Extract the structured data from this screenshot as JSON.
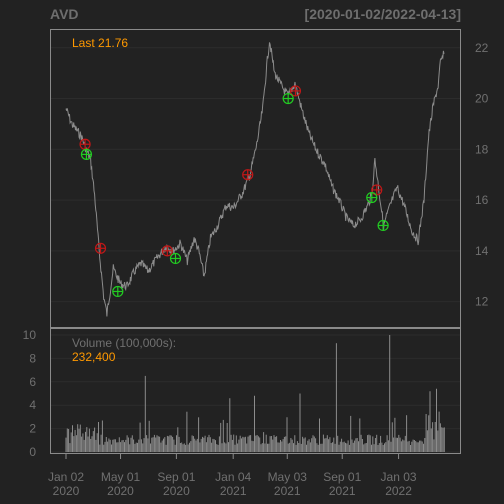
{
  "chart_data": {
    "type": "line",
    "title": "AVD",
    "date_range": "[2020-01-02/2022-04-13]",
    "price_panel": {
      "last_label": "Last 21.76",
      "yticks": [
        12,
        14,
        16,
        18,
        20,
        22
      ],
      "ylim": [
        11,
        22.7
      ],
      "series": [
        {
          "x": "2020-01-02",
          "y": 19.6
        },
        {
          "x": "2020-01-15",
          "y": 19.0
        },
        {
          "x": "2020-02-05",
          "y": 18.5
        },
        {
          "x": "2020-02-15",
          "y": 18.0
        },
        {
          "x": "2020-02-25",
          "y": 17.6
        },
        {
          "x": "2020-03-05",
          "y": 16.2
        },
        {
          "x": "2020-03-15",
          "y": 14.0
        },
        {
          "x": "2020-03-25",
          "y": 12.2
        },
        {
          "x": "2020-04-01",
          "y": 11.5
        },
        {
          "x": "2020-04-15",
          "y": 13.3
        },
        {
          "x": "2020-05-01",
          "y": 12.7
        },
        {
          "x": "2020-05-15",
          "y": 12.6
        },
        {
          "x": "2020-06-01",
          "y": 13.2
        },
        {
          "x": "2020-06-15",
          "y": 13.5
        },
        {
          "x": "2020-07-01",
          "y": 13.2
        },
        {
          "x": "2020-07-20",
          "y": 13.7
        },
        {
          "x": "2020-08-10",
          "y": 14.2
        },
        {
          "x": "2020-08-25",
          "y": 14.0
        },
        {
          "x": "2020-09-10",
          "y": 14.3
        },
        {
          "x": "2020-09-25",
          "y": 13.6
        },
        {
          "x": "2020-10-10",
          "y": 14.5
        },
        {
          "x": "2020-10-20",
          "y": 14.0
        },
        {
          "x": "2020-11-01",
          "y": 13.0
        },
        {
          "x": "2020-11-15",
          "y": 14.5
        },
        {
          "x": "2020-12-01",
          "y": 15.0
        },
        {
          "x": "2020-12-20",
          "y": 15.8
        },
        {
          "x": "2021-01-05",
          "y": 15.7
        },
        {
          "x": "2021-01-25",
          "y": 16.3
        },
        {
          "x": "2021-02-10",
          "y": 17.0
        },
        {
          "x": "2021-02-25",
          "y": 18.2
        },
        {
          "x": "2021-03-10",
          "y": 19.6
        },
        {
          "x": "2021-03-20",
          "y": 21.5
        },
        {
          "x": "2021-03-25",
          "y": 22.3
        },
        {
          "x": "2021-04-05",
          "y": 21.0
        },
        {
          "x": "2021-04-20",
          "y": 20.5
        },
        {
          "x": "2021-05-05",
          "y": 20.1
        },
        {
          "x": "2021-05-20",
          "y": 20.6
        },
        {
          "x": "2021-06-05",
          "y": 19.5
        },
        {
          "x": "2021-06-20",
          "y": 18.6
        },
        {
          "x": "2021-07-05",
          "y": 18.0
        },
        {
          "x": "2021-07-25",
          "y": 17.4
        },
        {
          "x": "2021-08-10",
          "y": 16.5
        },
        {
          "x": "2021-08-25",
          "y": 16.0
        },
        {
          "x": "2021-09-10",
          "y": 15.3
        },
        {
          "x": "2021-09-25",
          "y": 15.0
        },
        {
          "x": "2021-10-10",
          "y": 15.2
        },
        {
          "x": "2021-10-25",
          "y": 15.7
        },
        {
          "x": "2021-11-05",
          "y": 16.2
        },
        {
          "x": "2021-11-12",
          "y": 17.6
        },
        {
          "x": "2021-11-20",
          "y": 16.5
        },
        {
          "x": "2021-12-01",
          "y": 15.0
        },
        {
          "x": "2021-12-10",
          "y": 15.5
        },
        {
          "x": "2021-12-20",
          "y": 16.0
        },
        {
          "x": "2021-12-31",
          "y": 16.5
        },
        {
          "x": "2022-01-15",
          "y": 15.8
        },
        {
          "x": "2022-02-01",
          "y": 14.8
        },
        {
          "x": "2022-02-15",
          "y": 14.4
        },
        {
          "x": "2022-02-28",
          "y": 16.0
        },
        {
          "x": "2022-03-10",
          "y": 18.5
        },
        {
          "x": "2022-03-20",
          "y": 19.7
        },
        {
          "x": "2022-03-31",
          "y": 20.5
        },
        {
          "x": "2022-04-05",
          "y": 21.4
        },
        {
          "x": "2022-04-13",
          "y": 21.76
        }
      ],
      "sell_markers": [
        {
          "x": "2020-02-13",
          "y": 18.2
        },
        {
          "x": "2020-03-18",
          "y": 14.1
        },
        {
          "x": "2020-08-12",
          "y": 14.0
        },
        {
          "x": "2021-02-05",
          "y": 17.0
        },
        {
          "x": "2021-05-21",
          "y": 20.3
        },
        {
          "x": "2021-11-16",
          "y": 16.4
        }
      ],
      "buy_markers": [
        {
          "x": "2020-02-16",
          "y": 17.8
        },
        {
          "x": "2020-04-25",
          "y": 12.4
        },
        {
          "x": "2020-08-30",
          "y": 13.7
        },
        {
          "x": "2021-05-05",
          "y": 20.0
        },
        {
          "x": "2021-11-05",
          "y": 16.1
        },
        {
          "x": "2021-11-30",
          "y": 15.0
        }
      ]
    },
    "volume_panel": {
      "label": "Volume (100,000s):",
      "last_value": "232,400",
      "yticks": [
        0,
        2,
        4,
        6,
        8,
        10
      ],
      "ylim": [
        0,
        10
      ]
    },
    "x_ticks": [
      {
        "date": "2020-01-02",
        "line1": "Jan 02",
        "line2": "2020"
      },
      {
        "date": "2020-05-01",
        "line1": "May 01",
        "line2": "2020"
      },
      {
        "date": "2020-09-01",
        "line1": "Sep 01",
        "line2": "2020"
      },
      {
        "date": "2021-01-04",
        "line1": "Jan 04",
        "line2": "2021"
      },
      {
        "date": "2021-05-03",
        "line1": "May 03",
        "line2": "2021"
      },
      {
        "date": "2021-09-01",
        "line1": "Sep 01",
        "line2": "2021"
      },
      {
        "date": "2022-01-03",
        "line1": "Jan 03",
        "line2": "2022"
      }
    ],
    "colors": {
      "background": "#222222",
      "price_line": "#8c8c8c",
      "volume_bars": "#8c8c8c",
      "grid": "#2c2c2c",
      "frame": "#8a8a8a",
      "accent": "#ff9900",
      "sell_marker": "#c01818",
      "buy_marker": "#22cc22"
    }
  }
}
